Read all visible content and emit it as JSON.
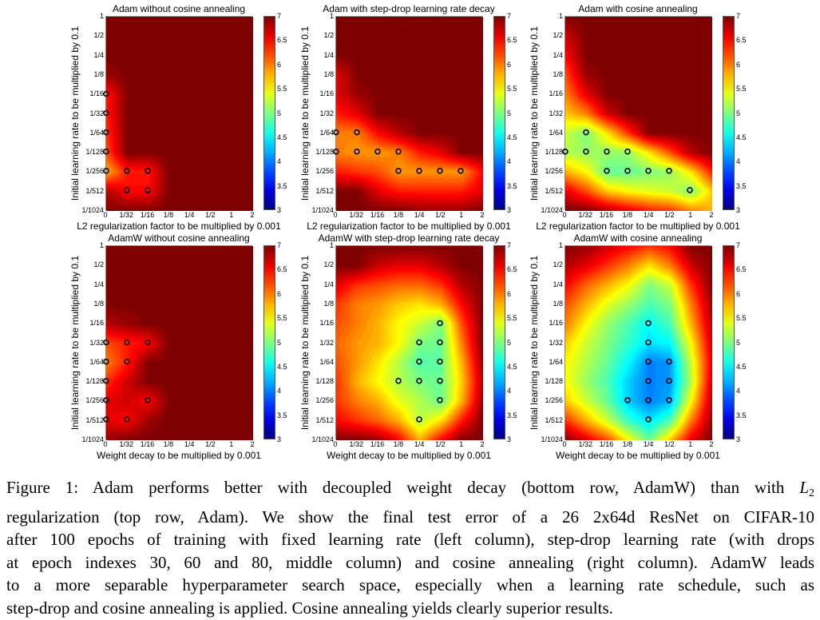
{
  "chart_data": [
    {
      "type": "heatmap",
      "title": "Adam without cosine annealing",
      "xlabel": "L2 regularization factor to be multiplied by 0.001",
      "ylabel": "Initial learning rate to be multiplied by 0.1",
      "x_ticks": [
        "0",
        "1/32",
        "1/16",
        "1/8",
        "1/4",
        "1/2",
        "1",
        "2"
      ],
      "y_ticks": [
        "1",
        "1/2",
        "1/4",
        "1/8",
        "1/16",
        "1/32",
        "1/64",
        "1/128",
        "1/256",
        "1/512",
        "1/1024"
      ],
      "colorbar": {
        "range": [
          3,
          7
        ],
        "ticks": [
          "3",
          "3.5",
          "4",
          "4.5",
          "5",
          "5.5",
          "6",
          "6.5",
          "7"
        ],
        "colormap": "jet"
      },
      "z": [
        [
          7,
          7,
          7,
          7,
          7,
          7,
          7,
          7
        ],
        [
          7,
          7,
          7,
          7,
          7,
          7,
          7,
          7
        ],
        [
          7,
          7,
          7,
          7,
          7,
          7,
          7,
          7
        ],
        [
          6.9,
          7,
          7,
          7,
          7,
          7,
          7,
          7
        ],
        [
          6.4,
          7,
          7,
          7,
          7,
          7,
          7,
          7
        ],
        [
          6.4,
          7,
          7,
          7,
          7,
          7,
          7,
          7
        ],
        [
          6.3,
          7,
          7,
          7,
          7,
          7,
          7,
          7
        ],
        [
          6.2,
          7,
          7,
          7,
          7,
          7,
          7,
          7
        ],
        [
          5.8,
          6.4,
          6.4,
          7,
          7,
          7,
          7,
          7
        ],
        [
          6.8,
          6.5,
          6.5,
          7,
          7,
          7,
          7,
          7
        ],
        [
          7,
          7,
          7,
          7,
          7,
          7,
          7,
          7
        ]
      ],
      "marked_points": [
        [
          "0",
          "1/16"
        ],
        [
          "0",
          "1/32"
        ],
        [
          "0",
          "1/64"
        ],
        [
          "0",
          "1/128"
        ],
        [
          "0",
          "1/256"
        ],
        [
          "1/32",
          "1/256"
        ],
        [
          "1/16",
          "1/256"
        ],
        [
          "1/32",
          "1/512"
        ],
        [
          "1/16",
          "1/512"
        ]
      ]
    },
    {
      "type": "heatmap",
      "title": "Adam with step-drop learning rate decay",
      "xlabel": "L2 regularization factor to be multiplied by 0.001",
      "ylabel": "Initial learning rate to be multiplied by 0.1",
      "x_ticks": [
        "0",
        "1/32",
        "1/16",
        "1/8",
        "1/4",
        "1/2",
        "1",
        "2"
      ],
      "y_ticks": [
        "1",
        "1/2",
        "1/4",
        "1/8",
        "1/16",
        "1/32",
        "1/64",
        "1/128",
        "1/256",
        "1/512",
        "1/1024"
      ],
      "colorbar": {
        "range": [
          3,
          7
        ],
        "ticks": [
          "3",
          "3.5",
          "4",
          "4.5",
          "5",
          "5.5",
          "6",
          "6.5",
          "7"
        ],
        "colormap": "jet"
      },
      "z": [
        [
          7,
          7,
          7,
          7,
          7,
          7,
          7,
          7
        ],
        [
          7,
          7,
          7,
          7,
          7,
          7,
          7,
          7
        ],
        [
          7,
          7,
          7,
          7,
          7,
          7,
          7,
          7
        ],
        [
          6.6,
          7,
          7,
          7,
          7,
          7,
          7,
          7
        ],
        [
          6.6,
          6.9,
          7,
          7,
          7,
          7,
          7,
          7
        ],
        [
          6.4,
          6.6,
          7,
          7,
          7,
          7,
          7,
          7
        ],
        [
          6.0,
          6.0,
          6.5,
          6.8,
          7,
          7,
          7,
          7
        ],
        [
          6.0,
          5.9,
          5.9,
          6.0,
          6.4,
          6.6,
          7,
          7
        ],
        [
          6.4,
          6.3,
          6.2,
          5.9,
          5.9,
          5.9,
          5.9,
          6.5
        ],
        [
          7,
          7,
          6.6,
          6.4,
          6.4,
          6.4,
          6.4,
          6.6
        ],
        [
          7,
          7,
          7,
          7,
          6.9,
          6.9,
          6.9,
          7
        ]
      ],
      "marked_points": [
        [
          "0",
          "1/64"
        ],
        [
          "1/32",
          "1/64"
        ],
        [
          "0",
          "1/128"
        ],
        [
          "1/32",
          "1/128"
        ],
        [
          "1/16",
          "1/128"
        ],
        [
          "1/8",
          "1/128"
        ],
        [
          "1/8",
          "1/256"
        ],
        [
          "1/4",
          "1/256"
        ],
        [
          "1/2",
          "1/256"
        ],
        [
          "1",
          "1/256"
        ]
      ]
    },
    {
      "type": "heatmap",
      "title": "Adam with cosine annealing",
      "xlabel": "L2 regularization factor to be multiplied by 0.001",
      "ylabel": "Initial learning rate to be multiplied by 0.1",
      "x_ticks": [
        "0",
        "1/32",
        "1/16",
        "1/8",
        "1/4",
        "1/2",
        "1",
        "2"
      ],
      "y_ticks": [
        "1",
        "1/2",
        "1/4",
        "1/8",
        "1/16",
        "1/32",
        "1/64",
        "1/128",
        "1/256",
        "1/512",
        "1/1024"
      ],
      "colorbar": {
        "range": [
          3,
          7
        ],
        "ticks": [
          "3",
          "3.5",
          "4",
          "4.5",
          "5",
          "5.5",
          "6",
          "6.5",
          "7"
        ],
        "colormap": "jet"
      },
      "z": [
        [
          7,
          7,
          7,
          7,
          7,
          7,
          7,
          7
        ],
        [
          6.7,
          7,
          7,
          7,
          7,
          7,
          7,
          7
        ],
        [
          6.5,
          7,
          7,
          7,
          7,
          7,
          7,
          7
        ],
        [
          6.2,
          6.9,
          7,
          7,
          7,
          7,
          7,
          7
        ],
        [
          6.0,
          6.6,
          7,
          7,
          7,
          7,
          7,
          7
        ],
        [
          5.7,
          6.0,
          6.7,
          7,
          7,
          7,
          7,
          7
        ],
        [
          5.3,
          5.0,
          5.6,
          6.3,
          7,
          7,
          7,
          7
        ],
        [
          5.2,
          5.1,
          5.1,
          5.1,
          5.6,
          6.2,
          6.8,
          7
        ],
        [
          5.8,
          5.5,
          4.9,
          4.9,
          5.0,
          5.1,
          5.6,
          6.4
        ],
        [
          6.6,
          6.2,
          5.7,
          5.5,
          5.4,
          5.3,
          5.0,
          5.7
        ],
        [
          7,
          7,
          6.8,
          6.6,
          6.4,
          6.3,
          6.0,
          5.8
        ]
      ],
      "marked_points": [
        [
          "1/32",
          "1/64"
        ],
        [
          "0",
          "1/128"
        ],
        [
          "1/32",
          "1/128"
        ],
        [
          "1/16",
          "1/128"
        ],
        [
          "1/8",
          "1/128"
        ],
        [
          "1/16",
          "1/256"
        ],
        [
          "1/8",
          "1/256"
        ],
        [
          "1/4",
          "1/256"
        ],
        [
          "1/2",
          "1/256"
        ],
        [
          "1",
          "1/512"
        ]
      ]
    },
    {
      "type": "heatmap",
      "title": "AdamW without cosine annealing",
      "xlabel": "Weight decay to be multiplied by 0.001",
      "ylabel": "Initial learning rate to be multiplied by 0.1",
      "x_ticks": [
        "0",
        "1/32",
        "1/16",
        "1/8",
        "1/4",
        "1/2",
        "1",
        "2"
      ],
      "y_ticks": [
        "1",
        "1/2",
        "1/4",
        "1/8",
        "1/16",
        "1/32",
        "1/64",
        "1/128",
        "1/256",
        "1/512",
        "1/1024"
      ],
      "colorbar": {
        "range": [
          3,
          7
        ],
        "ticks": [
          "3",
          "3.5",
          "4",
          "4.5",
          "5",
          "5.5",
          "6",
          "6.5",
          "7"
        ],
        "colormap": "jet"
      },
      "z": [
        [
          7,
          7,
          7,
          7,
          7,
          7,
          7,
          7
        ],
        [
          7,
          7,
          7,
          7,
          7,
          7,
          7,
          7
        ],
        [
          7,
          7,
          7,
          7,
          7,
          7,
          7,
          7
        ],
        [
          7,
          7,
          7,
          7,
          7,
          7,
          7,
          7
        ],
        [
          6.8,
          6.9,
          7,
          7,
          7,
          7,
          7,
          7
        ],
        [
          6.2,
          6.4,
          6.5,
          7,
          7,
          7,
          7,
          7
        ],
        [
          6.0,
          6.4,
          7,
          7,
          7,
          7,
          7,
          7
        ],
        [
          6.3,
          6.7,
          7,
          7,
          7,
          7,
          7,
          7
        ],
        [
          6.6,
          6.7,
          6.5,
          7,
          7,
          7,
          7,
          7
        ],
        [
          6.6,
          6.5,
          6.9,
          7,
          7,
          7,
          7,
          7
        ],
        [
          6.9,
          7,
          7,
          7,
          7,
          7,
          7,
          7
        ]
      ],
      "marked_points": [
        [
          "0",
          "1/32"
        ],
        [
          "1/32",
          "1/32"
        ],
        [
          "1/16",
          "1/32"
        ],
        [
          "0",
          "1/64"
        ],
        [
          "1/32",
          "1/64"
        ],
        [
          "0",
          "1/128"
        ],
        [
          "0",
          "1/256"
        ],
        [
          "1/16",
          "1/256"
        ],
        [
          "0",
          "1/512"
        ],
        [
          "1/32",
          "1/512"
        ]
      ]
    },
    {
      "type": "heatmap",
      "title": "AdamW with step-drop learning rate decay",
      "xlabel": "Weight decay to be multiplied by 0.001",
      "ylabel": "Initial learning rate to be multiplied by 0.1",
      "x_ticks": [
        "0",
        "1/32",
        "1/16",
        "1/8",
        "1/4",
        "1/2",
        "1",
        "2"
      ],
      "y_ticks": [
        "1",
        "1/2",
        "1/4",
        "1/8",
        "1/16",
        "1/32",
        "1/64",
        "1/128",
        "1/256",
        "1/512",
        "1/1024"
      ],
      "colorbar": {
        "range": [
          3,
          7
        ],
        "ticks": [
          "3",
          "3.5",
          "4",
          "4.5",
          "5",
          "5.5",
          "6",
          "6.5",
          "7"
        ],
        "colormap": "jet"
      },
      "z": [
        [
          7,
          7,
          7,
          7,
          7,
          7,
          7,
          7
        ],
        [
          7,
          7,
          6.7,
          6.6,
          6.6,
          6.8,
          7,
          7
        ],
        [
          6.6,
          6.3,
          6.2,
          6.1,
          6.1,
          6.3,
          6.8,
          7
        ],
        [
          6.3,
          6.0,
          5.9,
          5.7,
          5.6,
          5.8,
          6.5,
          7
        ],
        [
          6.2,
          6.0,
          5.8,
          5.5,
          5.3,
          5.0,
          6.2,
          7
        ],
        [
          6.1,
          5.9,
          5.8,
          5.5,
          5.0,
          4.9,
          6.0,
          7
        ],
        [
          6.2,
          5.9,
          5.6,
          5.2,
          4.8,
          4.9,
          5.8,
          6.9
        ],
        [
          6.3,
          5.8,
          5.5,
          5.2,
          5.0,
          4.9,
          5.7,
          6.8
        ],
        [
          6.3,
          6.0,
          5.8,
          5.4,
          5.2,
          4.9,
          5.8,
          6.9
        ],
        [
          6.5,
          6.3,
          6.1,
          5.8,
          5.2,
          5.6,
          6.4,
          7
        ],
        [
          7,
          7,
          6.9,
          6.5,
          5.8,
          6.5,
          7,
          7
        ]
      ],
      "marked_points": [
        [
          "1/2",
          "1/16"
        ],
        [
          "1/4",
          "1/32"
        ],
        [
          "1/2",
          "1/32"
        ],
        [
          "1/4",
          "1/64"
        ],
        [
          "1/2",
          "1/64"
        ],
        [
          "1/8",
          "1/128"
        ],
        [
          "1/4",
          "1/128"
        ],
        [
          "1/2",
          "1/128"
        ],
        [
          "1/2",
          "1/256"
        ],
        [
          "1/4",
          "1/512"
        ]
      ]
    },
    {
      "type": "heatmap",
      "title": "AdamW with cosine annealing",
      "xlabel": "Weight decay to be multiplied by 0.001",
      "ylabel": "Initial learning rate to be multiplied by 0.1",
      "x_ticks": [
        "0",
        "1/32",
        "1/16",
        "1/8",
        "1/4",
        "1/2",
        "1",
        "2"
      ],
      "y_ticks": [
        "1",
        "1/2",
        "1/4",
        "1/8",
        "1/16",
        "1/32",
        "1/64",
        "1/128",
        "1/256",
        "1/512",
        "1/1024"
      ],
      "colorbar": {
        "range": [
          3,
          7
        ],
        "ticks": [
          "3",
          "3.5",
          "4",
          "4.5",
          "5",
          "5.5",
          "6",
          "6.5",
          "7"
        ],
        "colormap": "jet"
      },
      "z": [
        [
          7,
          6.9,
          6.7,
          6.5,
          6.3,
          6.5,
          7,
          7
        ],
        [
          6.8,
          6.6,
          6.3,
          6.0,
          5.6,
          6.0,
          6.7,
          7
        ],
        [
          6.5,
          6.1,
          5.8,
          5.5,
          5.0,
          5.3,
          6.3,
          7
        ],
        [
          6.2,
          5.8,
          5.4,
          5.1,
          4.8,
          5.0,
          6.0,
          6.9
        ],
        [
          6.0,
          5.5,
          5.1,
          4.8,
          4.5,
          4.8,
          5.8,
          6.8
        ],
        [
          5.7,
          5.3,
          5.0,
          4.7,
          4.4,
          4.5,
          5.5,
          6.7
        ],
        [
          5.5,
          5.2,
          4.9,
          4.5,
          4.0,
          4.1,
          5.3,
          6.6
        ],
        [
          5.5,
          5.1,
          4.8,
          4.3,
          4.0,
          4.1,
          5.2,
          6.7
        ],
        [
          5.7,
          5.3,
          4.9,
          4.3,
          4.0,
          4.2,
          5.5,
          6.8
        ],
        [
          6.3,
          5.8,
          5.3,
          4.7,
          4.4,
          4.8,
          6.0,
          6.9
        ],
        [
          7,
          6.6,
          6.2,
          5.5,
          4.9,
          5.7,
          6.6,
          7
        ]
      ],
      "marked_points": [
        [
          "1/4",
          "1/16"
        ],
        [
          "1/4",
          "1/32"
        ],
        [
          "1/4",
          "1/64"
        ],
        [
          "1/2",
          "1/64"
        ],
        [
          "1/4",
          "1/128"
        ],
        [
          "1/2",
          "1/128"
        ],
        [
          "1/8",
          "1/256"
        ],
        [
          "1/4",
          "1/256"
        ],
        [
          "1/2",
          "1/256"
        ],
        [
          "1/4",
          "1/512"
        ]
      ]
    }
  ],
  "caption": {
    "line1_before": "Figure 1:  Adam performs better with decoupled weight decay (bottom row, AdamW) than with",
    "line1_math": "L",
    "line1_sub": "2",
    "lines": [
      "regularization (top row, Adam). We show the final test error of a 26 2x64d ResNet on CIFAR-10",
      "after 100 epochs of training with fixed learning rate (left column), step-drop learning rate (with drops",
      "at epoch indexes 30, 60 and 80, middle column) and cosine annealing (right column). AdamW leads",
      "to a more separable hyperparameter search space, especially when a learning rate schedule, such as",
      "step-drop and cosine annealing is applied. Cosine annealing yields clearly superior results."
    ]
  }
}
